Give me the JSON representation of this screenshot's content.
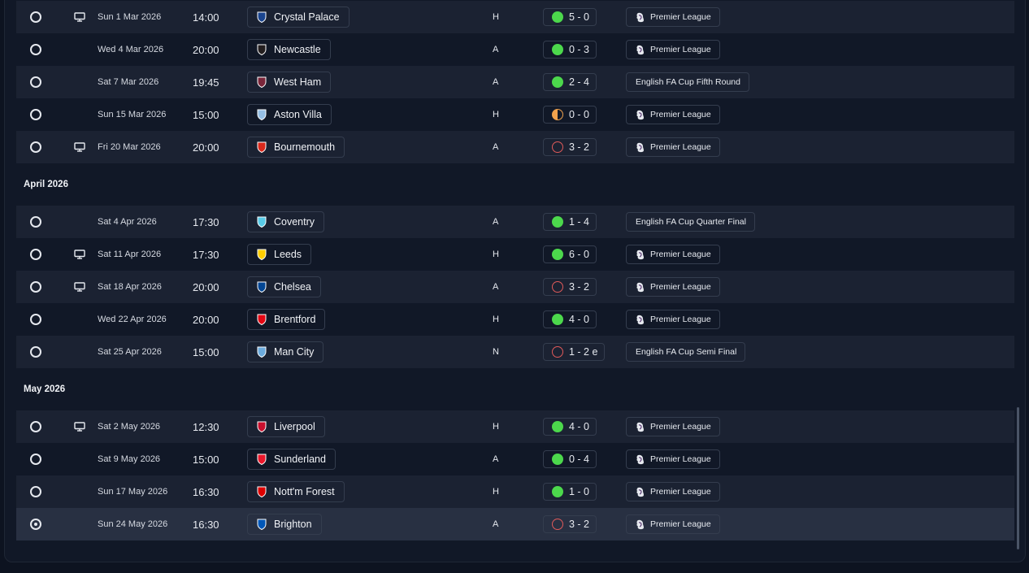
{
  "months": [
    {
      "label": "",
      "fixtures": [
        {
          "tv": true,
          "date": "Sun 1 Mar 2026",
          "time": "14:00",
          "team": "Crystal Palace",
          "venue": "H",
          "score": "5 - 0",
          "result": "win",
          "competition": "Premier League",
          "pl": true
        },
        {
          "tv": false,
          "date": "Wed 4 Mar 2026",
          "time": "20:00",
          "team": "Newcastle",
          "venue": "A",
          "score": "0 - 3",
          "result": "win",
          "competition": "Premier League",
          "pl": true
        },
        {
          "tv": false,
          "date": "Sat 7 Mar 2026",
          "time": "19:45",
          "team": "West Ham",
          "venue": "A",
          "score": "2 - 4",
          "result": "win",
          "competition": "English FA Cup Fifth Round",
          "pl": false
        },
        {
          "tv": false,
          "date": "Sun 15 Mar 2026",
          "time": "15:00",
          "team": "Aston Villa",
          "venue": "H",
          "score": "0 - 0",
          "result": "draw",
          "competition": "Premier League",
          "pl": true
        },
        {
          "tv": true,
          "date": "Fri 20 Mar 2026",
          "time": "20:00",
          "team": "Bournemouth",
          "venue": "A",
          "score": "3 - 2",
          "result": "loss",
          "competition": "Premier League",
          "pl": true
        }
      ]
    },
    {
      "label": "April 2026",
      "fixtures": [
        {
          "tv": false,
          "date": "Sat 4 Apr 2026",
          "time": "17:30",
          "team": "Coventry",
          "venue": "A",
          "score": "1 - 4",
          "result": "win",
          "competition": "English FA Cup Quarter Final",
          "pl": false
        },
        {
          "tv": true,
          "date": "Sat 11 Apr 2026",
          "time": "17:30",
          "team": "Leeds",
          "venue": "H",
          "score": "6 - 0",
          "result": "win",
          "competition": "Premier League",
          "pl": true
        },
        {
          "tv": true,
          "date": "Sat 18 Apr 2026",
          "time": "20:00",
          "team": "Chelsea",
          "venue": "A",
          "score": "3 - 2",
          "result": "loss",
          "competition": "Premier League",
          "pl": true
        },
        {
          "tv": false,
          "date": "Wed 22 Apr 2026",
          "time": "20:00",
          "team": "Brentford",
          "venue": "H",
          "score": "4 - 0",
          "result": "win",
          "competition": "Premier League",
          "pl": true
        },
        {
          "tv": false,
          "date": "Sat 25 Apr 2026",
          "time": "15:00",
          "team": "Man City",
          "venue": "N",
          "score": "1 - 2 e",
          "result": "loss",
          "competition": "English FA Cup Semi Final",
          "pl": false
        }
      ]
    },
    {
      "label": "May 2026",
      "fixtures": [
        {
          "tv": true,
          "date": "Sat 2 May 2026",
          "time": "12:30",
          "team": "Liverpool",
          "venue": "H",
          "score": "4 - 0",
          "result": "win",
          "competition": "Premier League",
          "pl": true
        },
        {
          "tv": false,
          "date": "Sat 9 May 2026",
          "time": "15:00",
          "team": "Sunderland",
          "venue": "A",
          "score": "0 - 4",
          "result": "win",
          "competition": "Premier League",
          "pl": true
        },
        {
          "tv": false,
          "date": "Sun 17 May 2026",
          "time": "16:30",
          "team": "Nott'm Forest",
          "venue": "H",
          "score": "1 - 0",
          "result": "win",
          "competition": "Premier League",
          "pl": true
        },
        {
          "tv": false,
          "date": "Sun 24 May 2026",
          "time": "16:30",
          "team": "Brighton",
          "venue": "A",
          "score": "3 - 2",
          "result": "loss",
          "competition": "Premier League",
          "pl": true,
          "selected": true
        }
      ]
    }
  ],
  "colors": {
    "win": "#4cd84c",
    "loss": "#e05a5a",
    "draw": "#f1a24d"
  }
}
